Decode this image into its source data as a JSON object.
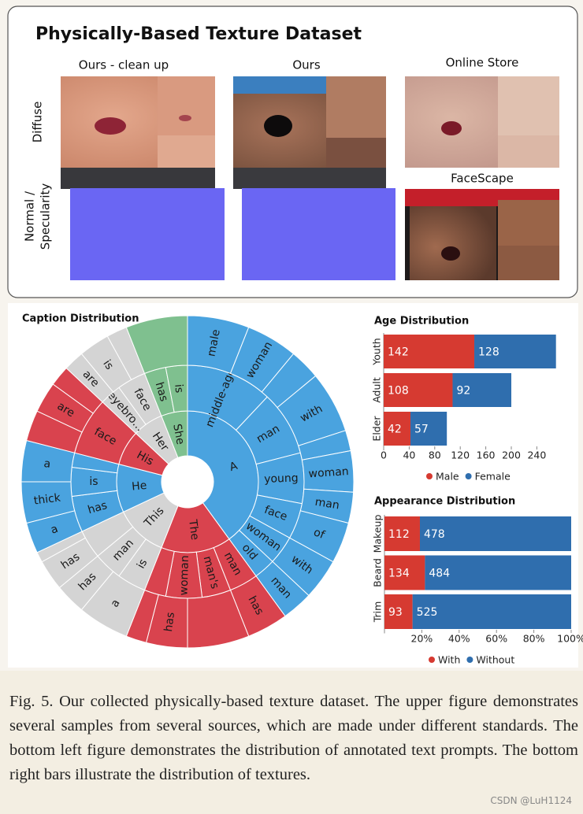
{
  "figure": {
    "title": "Physically-Based Texture Dataset",
    "columns": [
      "Ours - clean up",
      "Ours",
      "Online Store",
      "FaceScape"
    ],
    "rows": [
      [
        "Diffuse"
      ],
      [
        "Normal /",
        "Specularity"
      ]
    ]
  },
  "chart_data": [
    {
      "type": "sunburst",
      "title": "Caption Distribution",
      "rings": [
        [
          {
            "label": "A",
            "value": 40,
            "color": "#4aa3df"
          },
          {
            "label": "The",
            "value": 16,
            "color": "#d9434e"
          },
          {
            "label": "This",
            "value": 12,
            "color": "#d4d4d4"
          },
          {
            "label": "He",
            "value": 11,
            "color": "#4aa3df"
          },
          {
            "label": "His",
            "value": 8,
            "color": "#d9434e"
          },
          {
            "label": "Her",
            "value": 7,
            "color": "#d4d4d4"
          },
          {
            "label": "She",
            "value": 6,
            "color": "#7fc08f"
          }
        ],
        [
          {
            "label": "middle-aged",
            "value": 12,
            "color": "#4aa3df"
          },
          {
            "label": "man",
            "value": 9,
            "color": "#4aa3df"
          },
          {
            "label": "young",
            "value": 7,
            "color": "#4aa3df"
          },
          {
            "label": "face",
            "value": 5,
            "color": "#4aa3df"
          },
          {
            "label": "woman",
            "value": 4,
            "color": "#4aa3df"
          },
          {
            "label": "old",
            "value": 3,
            "color": "#4aa3df"
          },
          {
            "label": "man",
            "value": 4,
            "color": "#d9434e"
          },
          {
            "label": "man's",
            "value": 4,
            "color": "#d9434e"
          },
          {
            "label": "woman",
            "value": 5,
            "color": "#d9434e"
          },
          {
            "label": null,
            "value": 3,
            "color": "#d9434e"
          },
          {
            "label": "is",
            "value": 4,
            "color": "#d4d4d4"
          },
          {
            "label": "man",
            "value": 4,
            "color": "#d4d4d4"
          },
          {
            "label": null,
            "value": 4,
            "color": "#d4d4d4"
          },
          {
            "label": "has",
            "value": 5,
            "color": "#4aa3df"
          },
          {
            "label": "is",
            "value": 4,
            "color": "#4aa3df"
          },
          {
            "label": null,
            "value": 2,
            "color": "#4aa3df"
          },
          {
            "label": "face",
            "value": 8,
            "color": "#d9434e"
          },
          {
            "label": "eyebro...",
            "value": 3,
            "color": "#d4d4d4"
          },
          {
            "label": "face",
            "value": 4,
            "color": "#d4d4d4"
          },
          {
            "label": "has",
            "value": 3,
            "color": "#7fc08f"
          },
          {
            "label": "is",
            "value": 3,
            "color": "#7fc08f"
          }
        ],
        [
          {
            "label": "male",
            "value": 6,
            "color": "#4aa3df"
          },
          {
            "label": "woman",
            "value": 5,
            "color": "#4aa3df"
          },
          {
            "label": null,
            "value": 3,
            "color": "#4aa3df"
          },
          {
            "label": "with",
            "value": 6,
            "color": "#4aa3df"
          },
          {
            "label": null,
            "value": 2,
            "color": "#4aa3df"
          },
          {
            "label": "woman",
            "value": 4,
            "color": "#4aa3df"
          },
          {
            "label": "man",
            "value": 3,
            "color": "#4aa3df"
          },
          {
            "label": "of",
            "value": 4,
            "color": "#4aa3df"
          },
          {
            "label": "with",
            "value": 4,
            "color": "#4aa3df"
          },
          {
            "label": "man",
            "value": 3,
            "color": "#4aa3df"
          },
          {
            "label": "has",
            "value": 4,
            "color": "#d9434e"
          },
          {
            "label": null,
            "value": 6,
            "color": "#d9434e"
          },
          {
            "label": "has",
            "value": 4,
            "color": "#d9434e"
          },
          {
            "label": null,
            "value": 2,
            "color": "#d9434e"
          },
          {
            "label": "a",
            "value": 5,
            "color": "#d4d4d4"
          },
          {
            "label": "has",
            "value": 3,
            "color": "#d4d4d4"
          },
          {
            "label": "has",
            "value": 3,
            "color": "#d4d4d4"
          },
          {
            "label": null,
            "value": 1,
            "color": "#d4d4d4"
          },
          {
            "label": "a",
            "value": 3,
            "color": "#4aa3df"
          },
          {
            "label": "thick",
            "value": 4,
            "color": "#4aa3df"
          },
          {
            "label": "a",
            "value": 4,
            "color": "#4aa3df"
          },
          {
            "label": null,
            "value": 3,
            "color": "#d9434e"
          },
          {
            "label": "are",
            "value": 3,
            "color": "#d9434e"
          },
          {
            "label": null,
            "value": 2,
            "color": "#d9434e"
          },
          {
            "label": "are",
            "value": 2,
            "color": "#d4d4d4"
          },
          {
            "label": "is",
            "value": 3,
            "color": "#d4d4d4"
          },
          {
            "label": null,
            "value": 2,
            "color": "#d4d4d4"
          },
          {
            "label": null,
            "value": 6,
            "color": "#7fc08f"
          }
        ]
      ]
    },
    {
      "type": "bar",
      "orientation": "horizontal",
      "stacked": true,
      "title": "Age Distribution",
      "categories": [
        "Youth",
        "Adult",
        "Elder"
      ],
      "series": [
        {
          "name": "Male",
          "color": "#d63a31",
          "values": [
            142,
            108,
            42
          ]
        },
        {
          "name": "Female",
          "color": "#2f6eae",
          "values": [
            128,
            92,
            57
          ]
        }
      ],
      "xlim": [
        0,
        300
      ],
      "xticks": [
        0,
        40,
        80,
        120,
        160,
        200,
        240
      ],
      "legend": "bottom"
    },
    {
      "type": "bar",
      "orientation": "horizontal",
      "stacked": "percent",
      "title": "Appearance Distribution",
      "categories": [
        "Makeup",
        "Beard",
        "Trim"
      ],
      "series": [
        {
          "name": "With",
          "color": "#d63a31",
          "values": [
            112,
            134,
            93
          ]
        },
        {
          "name": "Without",
          "color": "#2f6eae",
          "values": [
            478,
            484,
            525
          ]
        }
      ],
      "xlim": [
        0,
        100
      ],
      "xticks": [
        {
          "value": 20,
          "label": "20%"
        },
        {
          "value": 40,
          "label": "40%"
        },
        {
          "value": 60,
          "label": "60%"
        },
        {
          "value": 80,
          "label": "80%"
        },
        {
          "value": 100,
          "label": "100%"
        }
      ],
      "legend": "bottom"
    }
  ],
  "caption": "Fig. 5.  Our collected physically-based texture dataset. The upper figure demonstrates several samples from several sources, which are made under different standards. The bottom left figure demonstrates the distribution of annotated text prompts. The bottom right bars illustrate the distribution of textures.",
  "watermark": "CSDN @LuH1124"
}
